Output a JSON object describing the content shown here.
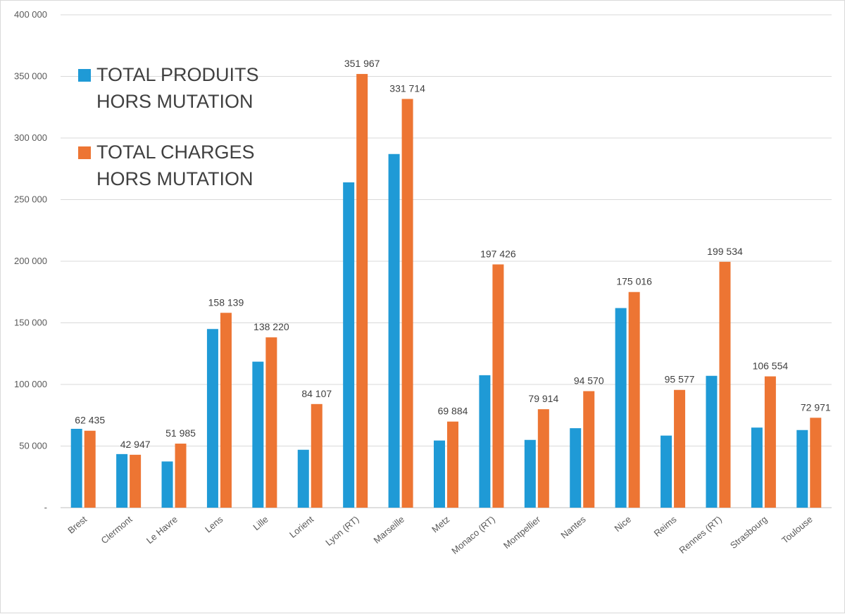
{
  "chart_data": {
    "type": "bar",
    "categories": [
      "Brest",
      "Clermont",
      "Le Havre",
      "Lens",
      "Lille",
      "Lorient",
      "Lyon (RT)",
      "Marseille",
      "Metz",
      "Monaco (RT)",
      "Montpellier",
      "Nantes",
      "Nice",
      "Reims",
      "Rennes (RT)",
      "Strasbourg",
      "Toulouse"
    ],
    "series": [
      {
        "name": "TOTAL PRODUITS HORS MUTATION",
        "legend_lines": [
          "TOTAL PRODUITS",
          "HORS MUTATION"
        ],
        "color": "#1f9ad6",
        "values": [
          64000,
          43500,
          37500,
          145000,
          118500,
          47000,
          264000,
          287000,
          54500,
          107500,
          55000,
          64500,
          162000,
          58500,
          107000,
          65000,
          63000
        ]
      },
      {
        "name": "TOTAL CHARGES HORS MUTATION",
        "legend_lines": [
          "TOTAL CHARGES",
          "HORS MUTATION"
        ],
        "color": "#ed7533",
        "values": [
          62435,
          42947,
          51985,
          158139,
          138220,
          84107,
          351967,
          331714,
          69884,
          197426,
          79914,
          94570,
          175016,
          95577,
          199534,
          106554,
          72971
        ],
        "data_labels": [
          "62 435",
          "42 947",
          "51 985",
          "158 139",
          "138 220",
          "84 107",
          "351 967",
          "331 714",
          "69 884",
          "197 426",
          "79 914",
          "94 570",
          "175 016",
          "95 577",
          "199 534",
          "106 554",
          "72 971"
        ]
      }
    ],
    "y_ticks": [
      0,
      50000,
      100000,
      150000,
      200000,
      250000,
      300000,
      350000,
      400000
    ],
    "y_tick_labels": [
      "-",
      "50 000",
      "100 000",
      "150 000",
      "200 000",
      "250 000",
      "300 000",
      "350 000",
      "400 000"
    ],
    "ylim": [
      0,
      400000
    ],
    "grid": true,
    "legend_position": "top-left",
    "title": "",
    "xlabel": "",
    "ylabel": ""
  }
}
